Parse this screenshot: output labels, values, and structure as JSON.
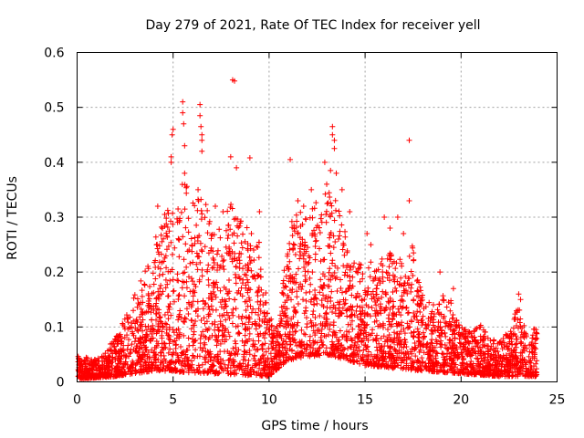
{
  "chart_data": {
    "type": "scatter",
    "title": "Day 279 of 2021, Rate Of TEC Index for receiver yell",
    "xlabel": "GPS time / hours",
    "ylabel": "ROTI / TECUs",
    "xlim": [
      0,
      25
    ],
    "ylim": [
      0,
      0.6
    ],
    "xticks": [
      0,
      5,
      10,
      15,
      20,
      25
    ],
    "yticks": [
      0,
      0.1,
      0.2,
      0.3,
      0.4,
      0.5,
      0.6
    ],
    "grid": true,
    "marker": "+",
    "marker_color": "#ff0000",
    "envelope": [
      [
        0,
        0.05
      ],
      [
        0.5,
        0.045
      ],
      [
        1,
        0.04
      ],
      [
        1.5,
        0.06
      ],
      [
        2,
        0.08
      ],
      [
        2.5,
        0.12
      ],
      [
        3,
        0.16
      ],
      [
        3.5,
        0.2
      ],
      [
        4,
        0.26
      ],
      [
        4.5,
        0.3
      ],
      [
        5,
        0.35
      ],
      [
        5.5,
        0.38
      ],
      [
        6,
        0.33
      ],
      [
        6.5,
        0.34
      ],
      [
        7,
        0.3
      ],
      [
        7.5,
        0.28
      ],
      [
        8,
        0.33
      ],
      [
        8.5,
        0.3
      ],
      [
        9,
        0.28
      ],
      [
        9.5,
        0.26
      ],
      [
        10,
        0.12
      ],
      [
        10.5,
        0.1
      ],
      [
        11,
        0.28
      ],
      [
        11.5,
        0.32
      ],
      [
        12,
        0.3
      ],
      [
        12.5,
        0.33
      ],
      [
        13,
        0.36
      ],
      [
        13.5,
        0.33
      ],
      [
        14,
        0.27
      ],
      [
        14.5,
        0.22
      ],
      [
        15,
        0.22
      ],
      [
        15.5,
        0.22
      ],
      [
        16,
        0.23
      ],
      [
        16.5,
        0.24
      ],
      [
        17,
        0.22
      ],
      [
        17.5,
        0.25
      ],
      [
        18,
        0.16
      ],
      [
        18.5,
        0.14
      ],
      [
        19,
        0.16
      ],
      [
        19.5,
        0.15
      ],
      [
        20,
        0.1
      ],
      [
        20.5,
        0.09
      ],
      [
        21,
        0.11
      ],
      [
        21.5,
        0.08
      ],
      [
        22,
        0.08
      ],
      [
        22.5,
        0.09
      ],
      [
        23,
        0.15
      ],
      [
        23.5,
        0.07
      ],
      [
        24,
        0.13
      ]
    ],
    "floor": [
      [
        0,
        0.005
      ],
      [
        2,
        0.01
      ],
      [
        4,
        0.02
      ],
      [
        10,
        0.01
      ],
      [
        11,
        0.04
      ],
      [
        13,
        0.05
      ],
      [
        15,
        0.03
      ],
      [
        18,
        0.02
      ],
      [
        22,
        0.01
      ],
      [
        24,
        0.01
      ]
    ],
    "outliers": [
      [
        8.1,
        0.55
      ],
      [
        8.2,
        0.548
      ],
      [
        5.5,
        0.51
      ],
      [
        5.5,
        0.49
      ],
      [
        5.55,
        0.47
      ],
      [
        6.4,
        0.505
      ],
      [
        6.4,
        0.485
      ],
      [
        6.45,
        0.465
      ],
      [
        6.5,
        0.45
      ],
      [
        6.5,
        0.44
      ],
      [
        5.0,
        0.46
      ],
      [
        4.95,
        0.45
      ],
      [
        5.6,
        0.43
      ],
      [
        6.5,
        0.42
      ],
      [
        13.3,
        0.465
      ],
      [
        13.3,
        0.45
      ],
      [
        13.4,
        0.44
      ],
      [
        13.4,
        0.425
      ],
      [
        17.3,
        0.44
      ],
      [
        11.1,
        0.405
      ],
      [
        8.0,
        0.41
      ],
      [
        8.3,
        0.39
      ],
      [
        9.0,
        0.408
      ],
      [
        12.9,
        0.4
      ],
      [
        13.2,
        0.385
      ],
      [
        13.5,
        0.38
      ],
      [
        17.3,
        0.33
      ],
      [
        4.9,
        0.4
      ],
      [
        4.2,
        0.32
      ],
      [
        4.9,
        0.41
      ],
      [
        5.6,
        0.38
      ],
      [
        6.3,
        0.35
      ],
      [
        9.5,
        0.31
      ],
      [
        13.0,
        0.36
      ],
      [
        13.8,
        0.35
      ],
      [
        14.2,
        0.31
      ],
      [
        16.7,
        0.3
      ],
      [
        16.0,
        0.3
      ],
      [
        16.3,
        0.28
      ],
      [
        7.2,
        0.32
      ],
      [
        7.6,
        0.31
      ],
      [
        12.2,
        0.35
      ],
      [
        11.5,
        0.33
      ],
      [
        11.8,
        0.32
      ],
      [
        15.1,
        0.27
      ],
      [
        15.3,
        0.25
      ],
      [
        17.0,
        0.27
      ],
      [
        19.6,
        0.17
      ],
      [
        18.9,
        0.2
      ],
      [
        23.0,
        0.16
      ],
      [
        23.1,
        0.15
      ]
    ]
  }
}
